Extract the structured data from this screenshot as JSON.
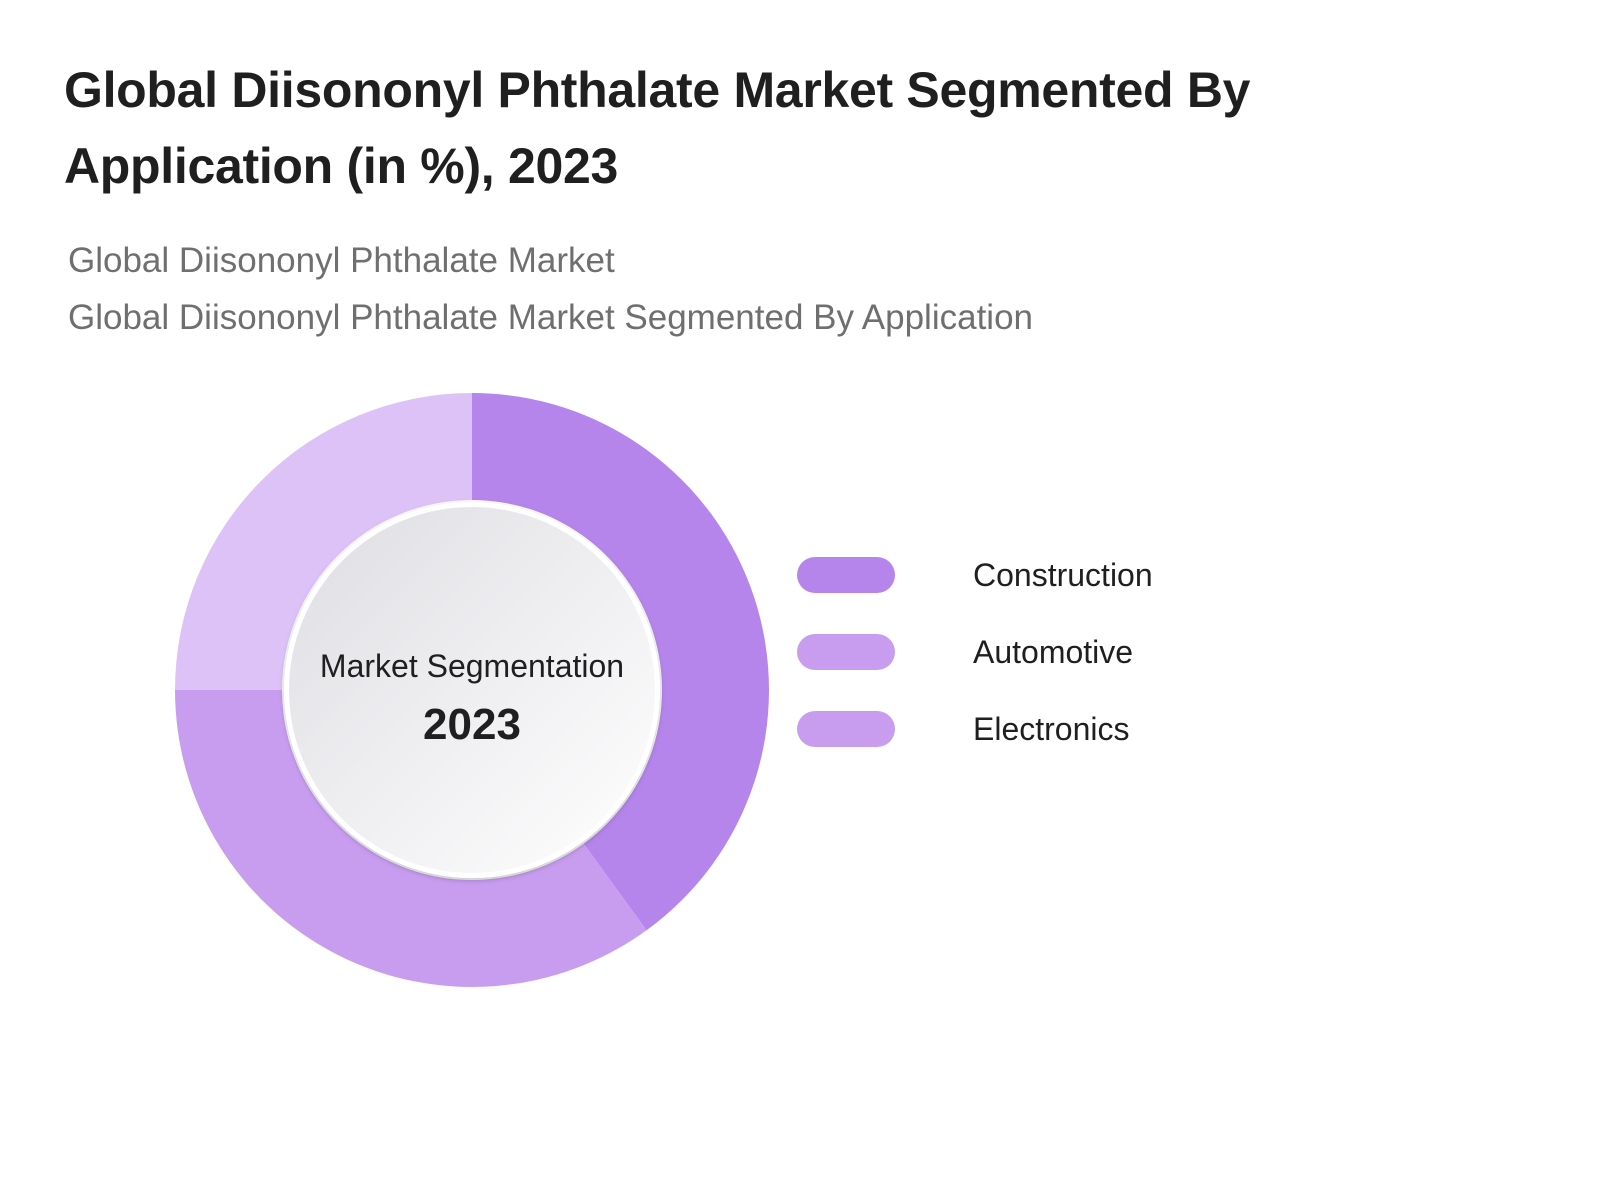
{
  "chart_data": {
    "type": "pie",
    "title": "Global Diisononyl Phthalate Market Segmented By Application (in %), 2023",
    "subtitles": [
      "Global Diisononyl Phthalate Market",
      "Global Diisononyl Phthalate Market Segmented By Application"
    ],
    "center_label": "Market Segmentation",
    "center_year": "2023",
    "legend_placement": "right",
    "categories": [
      "Construction",
      "Automotive",
      "Electronics"
    ],
    "values": [
      40,
      35,
      25
    ],
    "colors": [
      "#b585ec",
      "#c89df0",
      "#ddc2f7"
    ],
    "legend_colors": [
      "#b585ec",
      "#c89df0",
      "#c89df0"
    ]
  }
}
